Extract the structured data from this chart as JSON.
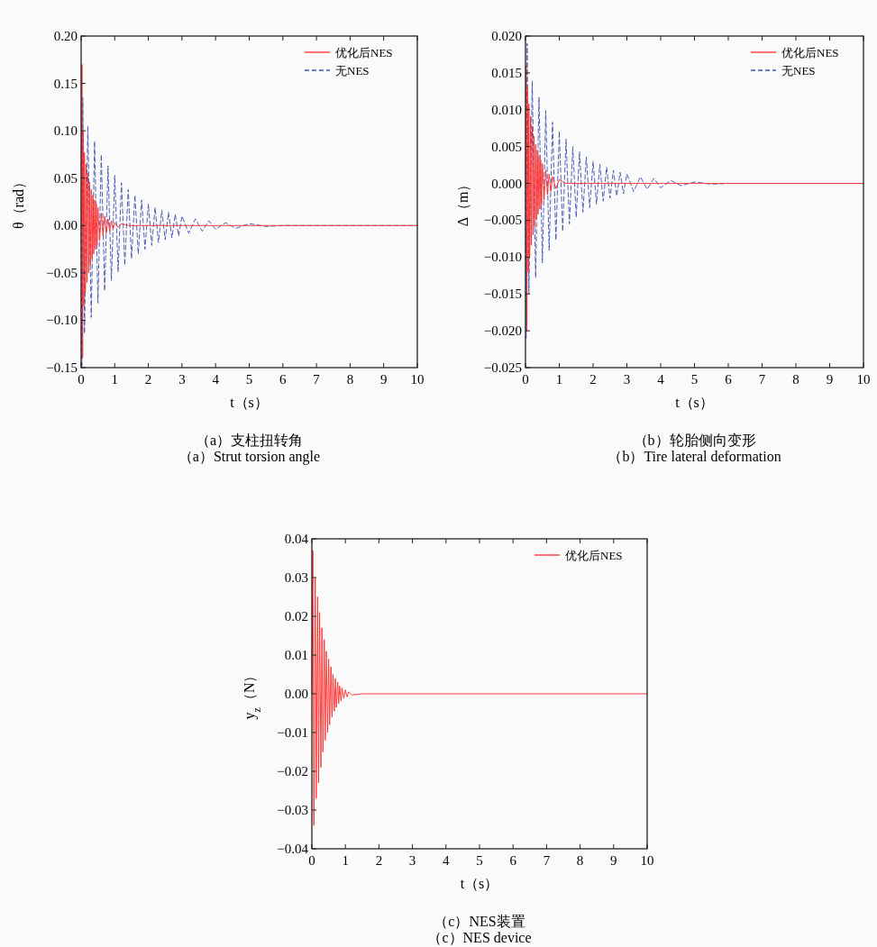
{
  "chart_data": [
    {
      "type": "line",
      "title": "（a）支柱扭转角",
      "subtitle": "（a）Strut torsion angle",
      "xlabel": "t（s）",
      "ylabel": "θ（rad）",
      "xlim": [
        0,
        10
      ],
      "xticks": [
        0,
        1,
        2,
        3,
        4,
        5,
        6,
        7,
        8,
        9,
        10
      ],
      "ylim": [
        -0.15,
        0.2
      ],
      "yticks": [
        {
          "value": -0.15,
          "label": "−0.15"
        },
        {
          "value": -0.1,
          "label": "−0.10"
        },
        {
          "value": -0.05,
          "label": "−0.05"
        },
        {
          "value": 0,
          "label": "0.00"
        },
        {
          "value": 0.05,
          "label": "0.05"
        },
        {
          "value": 0.1,
          "label": "0.10"
        },
        {
          "value": 0.15,
          "label": "0.15"
        },
        {
          "value": 0.2,
          "label": "0.20"
        }
      ],
      "grid": false,
      "legend": "top right",
      "series": [
        {
          "name": "无NES",
          "color": "#4050b0",
          "line_style": "dashed",
          "x": [
            0,
            0.02,
            0.05,
            0.1,
            0.2,
            0.3,
            0.4,
            0.5,
            0.6,
            0.7,
            0.8,
            0.9,
            1.0,
            1.1,
            1.2,
            1.3,
            1.4,
            1.5,
            1.6,
            1.7,
            1.8,
            1.9,
            2.0,
            2.1,
            2.2,
            2.3,
            2.4,
            2.5,
            2.6,
            2.7,
            2.8,
            2.9,
            3.0,
            3.2,
            3.4,
            3.6,
            3.8,
            4.0,
            4.3,
            4.6,
            5.0,
            5.5,
            6,
            10
          ],
          "values": [
            0,
            -0.15,
            0.135,
            -0.114,
            0.105,
            -0.097,
            0.089,
            -0.082,
            0.075,
            -0.069,
            0.063,
            -0.058,
            0.053,
            -0.049,
            0.045,
            -0.042,
            0.038,
            -0.035,
            0.032,
            -0.03,
            0.027,
            -0.025,
            0.023,
            -0.021,
            0.019,
            -0.018,
            0.016,
            -0.015,
            0.014,
            -0.013,
            0.012,
            -0.011,
            0.01,
            -0.008,
            0.007,
            -0.006,
            0.005,
            -0.004,
            0.003,
            -0.003,
            0.002,
            -0.001,
            0,
            0
          ]
        },
        {
          "name": "优化后NES",
          "color": "#ff2a2a",
          "line_style": "solid",
          "x": [
            0,
            0.025,
            0.045,
            0.06,
            0.08,
            0.1,
            0.125,
            0.15,
            0.175,
            0.2,
            0.225,
            0.25,
            0.275,
            0.3,
            0.325,
            0.35,
            0.375,
            0.4,
            0.425,
            0.45,
            0.475,
            0.5,
            0.55,
            0.6,
            0.65,
            0.7,
            0.75,
            0.8,
            0.85,
            0.9,
            0.95,
            1.0,
            1.1,
            1.2,
            1.4,
            10
          ],
          "values": [
            0,
            0.17,
            -0.14,
            0.1,
            -0.085,
            0.077,
            -0.071,
            0.065,
            -0.06,
            0.055,
            -0.05,
            0.046,
            -0.042,
            0.038,
            -0.035,
            0.032,
            -0.03,
            0.027,
            -0.025,
            0.023,
            -0.021,
            0.019,
            -0.016,
            0.013,
            -0.011,
            0.01,
            -0.008,
            0.007,
            -0.006,
            0.005,
            -0.004,
            0.003,
            -0.002,
            0.002,
            0,
            0
          ]
        }
      ]
    },
    {
      "type": "line",
      "title": "（b）轮胎侧向变形",
      "subtitle": "（b）Tire lateral deformation",
      "xlabel": "t（s）",
      "ylabel": "Δ（m）",
      "xlim": [
        0,
        10
      ],
      "xticks": [
        0,
        1,
        2,
        3,
        4,
        5,
        6,
        7,
        8,
        9,
        10
      ],
      "ylim": [
        -0.025,
        0.02
      ],
      "yticks": [
        {
          "value": -0.025,
          "label": "−0.025"
        },
        {
          "value": -0.02,
          "label": "−0.020"
        },
        {
          "value": -0.015,
          "label": "−0.015"
        },
        {
          "value": -0.01,
          "label": "−0.010"
        },
        {
          "value": -0.005,
          "label": "−0.005"
        },
        {
          "value": 0,
          "label": "0.000"
        },
        {
          "value": 0.005,
          "label": "0.005"
        },
        {
          "value": 0.01,
          "label": "0.010"
        },
        {
          "value": 0.015,
          "label": "0.015"
        },
        {
          "value": 0.02,
          "label": "0.020"
        }
      ],
      "grid": false,
      "legend": "top right",
      "series": [
        {
          "name": "无NES",
          "color": "#4050b0",
          "line_style": "dashed",
          "x": [
            0,
            0.02,
            0.05,
            0.1,
            0.2,
            0.3,
            0.4,
            0.5,
            0.6,
            0.7,
            0.8,
            0.9,
            1.0,
            1.1,
            1.2,
            1.3,
            1.4,
            1.5,
            1.6,
            1.7,
            1.8,
            1.9,
            2.0,
            2.1,
            2.2,
            2.3,
            2.4,
            2.5,
            2.6,
            2.7,
            2.8,
            2.9,
            3.0,
            3.2,
            3.4,
            3.6,
            3.8,
            4.0,
            4.3,
            4.6,
            5.0,
            5.5,
            6,
            10
          ],
          "values": [
            0,
            -0.021,
            0.019,
            -0.015,
            0.0139,
            -0.0128,
            0.0117,
            -0.0108,
            0.0099,
            -0.0091,
            0.0083,
            -0.0077,
            0.0071,
            -0.0065,
            0.006,
            -0.0055,
            0.005,
            -0.0046,
            0.0043,
            -0.0039,
            0.0036,
            -0.0033,
            0.003,
            -0.0028,
            0.0026,
            -0.0024,
            0.0022,
            -0.002,
            0.0018,
            -0.0017,
            0.0015,
            -0.0014,
            0.0013,
            -0.0011,
            0.0009,
            -0.0008,
            0.0007,
            -0.0006,
            0.0004,
            -0.0003,
            0.0002,
            -0.0001,
            0,
            0
          ]
        },
        {
          "name": "优化后NES",
          "color": "#ff2a2a",
          "line_style": "solid",
          "x": [
            0,
            0.02,
            0.04,
            0.06,
            0.08,
            0.1,
            0.125,
            0.15,
            0.175,
            0.2,
            0.225,
            0.25,
            0.275,
            0.3,
            0.325,
            0.35,
            0.375,
            0.4,
            0.425,
            0.45,
            0.475,
            0.5,
            0.55,
            0.6,
            0.65,
            0.7,
            0.75,
            0.8,
            0.9,
            1.0,
            1.2,
            10
          ],
          "values": [
            0,
            0.016,
            -0.02,
            0.013,
            -0.012,
            0.0108,
            -0.0099,
            0.0091,
            -0.0084,
            0.0077,
            -0.007,
            0.0064,
            -0.0059,
            0.0053,
            -0.0049,
            0.0045,
            -0.0042,
            0.0038,
            -0.0035,
            0.0032,
            -0.0029,
            0.0027,
            -0.0022,
            0.0018,
            -0.0015,
            0.0013,
            -0.0011,
            0.0009,
            -0.0007,
            0.0005,
            0,
            0
          ]
        }
      ]
    },
    {
      "type": "line",
      "title": "（c）NES装置",
      "subtitle": "（c）NES device",
      "xlabel": "t（s）",
      "ylabel": "y$_{z}$（N）",
      "xlim": [
        0,
        10
      ],
      "xticks": [
        0,
        1,
        2,
        3,
        4,
        5,
        6,
        7,
        8,
        9,
        10
      ],
      "ylim": [
        -0.04,
        0.04
      ],
      "yticks": [
        {
          "value": -0.04,
          "label": "−0.04"
        },
        {
          "value": -0.03,
          "label": "−0.03"
        },
        {
          "value": -0.02,
          "label": "−0.02"
        },
        {
          "value": -0.01,
          "label": "−0.01"
        },
        {
          "value": 0,
          "label": "0.00"
        },
        {
          "value": 0.01,
          "label": "0.01"
        },
        {
          "value": 0.02,
          "label": "0.02"
        },
        {
          "value": 0.03,
          "label": "0.03"
        },
        {
          "value": 0.04,
          "label": "0.04"
        }
      ],
      "grid": false,
      "legend": "top right",
      "series": [
        {
          "name": "优化后NES",
          "color": "#ff2a2a",
          "line_style": "solid",
          "x": [
            0,
            0.03,
            0.06,
            0.1,
            0.13,
            0.17,
            0.2,
            0.23,
            0.27,
            0.3,
            0.33,
            0.37,
            0.4,
            0.43,
            0.47,
            0.5,
            0.53,
            0.57,
            0.6,
            0.63,
            0.67,
            0.7,
            0.73,
            0.77,
            0.8,
            0.83,
            0.87,
            0.9,
            0.95,
            1.0,
            1.05,
            1.1,
            1.2,
            1.5,
            10
          ],
          "values": [
            0,
            0.037,
            -0.034,
            0.03,
            -0.027,
            0.025,
            -0.023,
            0.021,
            -0.019,
            0.017,
            -0.015,
            0.014,
            -0.012,
            0.011,
            -0.01,
            0.009,
            -0.008,
            0.007,
            -0.006,
            0.005,
            -0.0045,
            0.004,
            -0.0035,
            0.003,
            -0.0025,
            0.002,
            -0.0018,
            0.0015,
            -0.0012,
            0.001,
            -0.0008,
            0.0005,
            -0.0003,
            0,
            0
          ]
        }
      ]
    }
  ]
}
